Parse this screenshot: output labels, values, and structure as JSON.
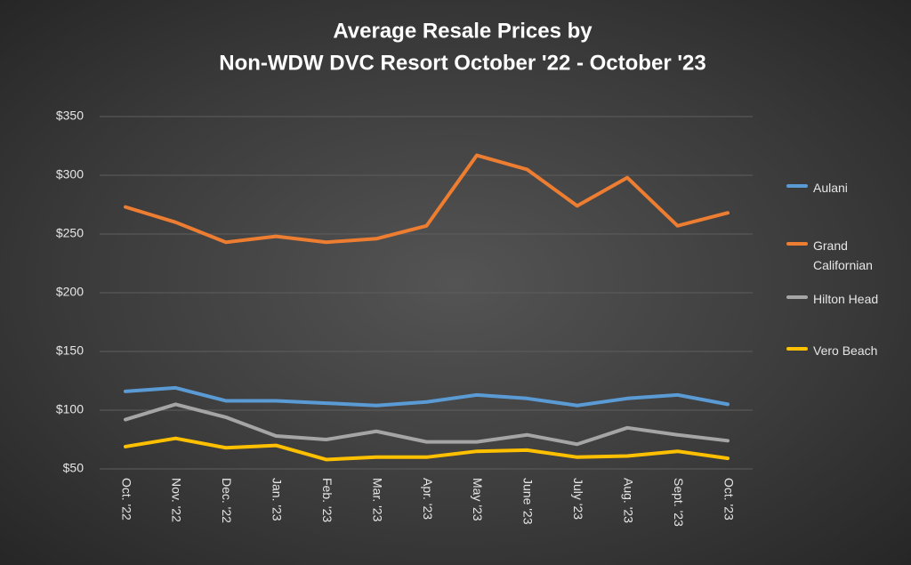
{
  "chart_data": {
    "type": "line",
    "title": [
      "Average Resale Prices by",
      "Non-WDW DVC Resort October '22 - October '23"
    ],
    "categories": [
      "Oct. '22",
      "Nov. '22",
      "Dec. '22",
      "Jan. '23",
      "Feb. '23",
      "Mar. '23",
      "Apr. '23",
      "May '23",
      "June '23",
      "July '23",
      "Aug. '23",
      "Sept. '23",
      "Oct. '23"
    ],
    "series": [
      {
        "name": "Aulani",
        "color": "#5b9bd5",
        "values": [
          116,
          119,
          108,
          108,
          106,
          104,
          107,
          113,
          110,
          104,
          110,
          113,
          105
        ]
      },
      {
        "name": "Grand Californian",
        "color": "#ed7d31",
        "values": [
          273,
          260,
          243,
          248,
          243,
          246,
          257,
          317,
          305,
          274,
          298,
          257,
          268
        ]
      },
      {
        "name": "Hilton Head",
        "color": "#a5a5a5",
        "values": [
          92,
          105,
          94,
          78,
          75,
          82,
          73,
          73,
          79,
          71,
          85,
          79,
          74
        ]
      },
      {
        "name": "Vero Beach",
        "color": "#ffc000",
        "values": [
          69,
          76,
          68,
          70,
          58,
          60,
          60,
          65,
          66,
          60,
          61,
          65,
          59
        ]
      }
    ],
    "ylim": [
      50,
      350
    ],
    "yticks": [
      {
        "value": 50,
        "label": "$50"
      },
      {
        "value": 100,
        "label": "$100"
      },
      {
        "value": 150,
        "label": "$150"
      },
      {
        "value": 200,
        "label": "$200"
      },
      {
        "value": 250,
        "label": "$250"
      },
      {
        "value": 300,
        "label": "$300"
      },
      {
        "value": 350,
        "label": "$350"
      }
    ],
    "grid": true
  }
}
